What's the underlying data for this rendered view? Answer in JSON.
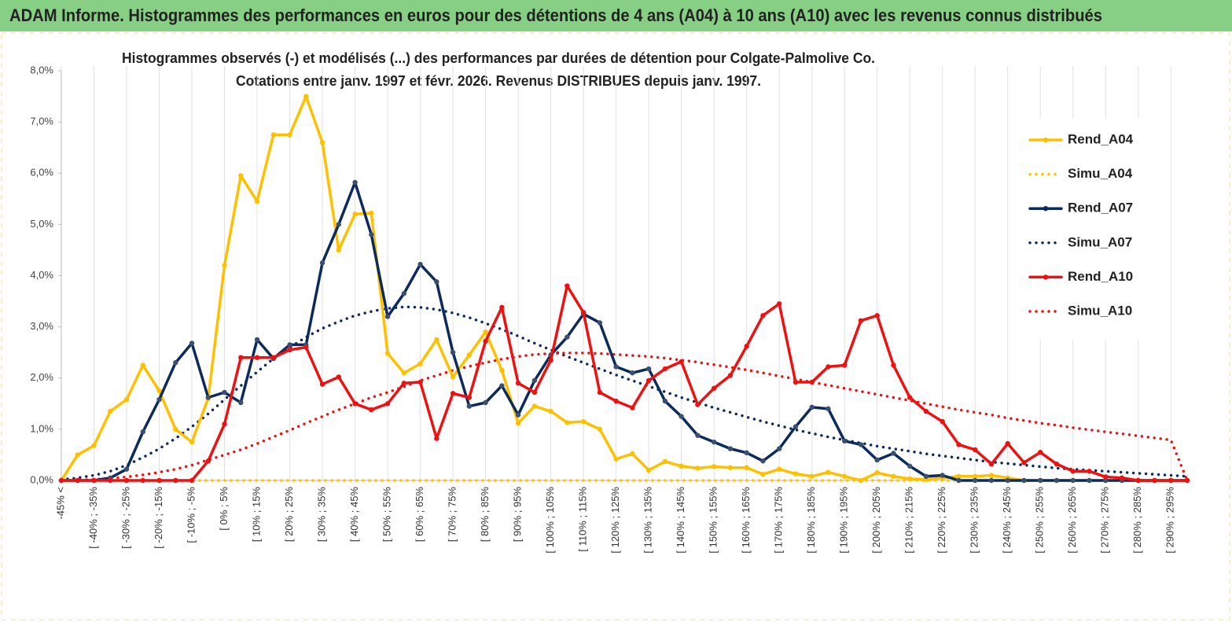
{
  "banner": "ADAM Informe. Histogrammes des performances en euros pour des détentions de 4 ans (A04) à 10 ans (A10) avec les revenus connus distribués",
  "chart_data": {
    "type": "line",
    "title": "Histogrammes observés (-) et modélisés (...) des performances par durées de détention pour Colgate-Palmolive Co.",
    "subtitle": "Cotations entre janv. 1997 et févr. 2026. Revenus DISTRIBUES depuis janv. 1997.",
    "categories": [
      "-45% <",
      null,
      "[ -40% ; -35%",
      null,
      "[ -30% ; -25%",
      null,
      "[ -20% ; -15%",
      null,
      "[ -10% ; -5%",
      null,
      "[ 0% ; 5%",
      null,
      "[ 10% ; 15%",
      null,
      "[ 20% ; 25%",
      null,
      "[ 30% ; 35%",
      null,
      "[ 40% ; 45%",
      null,
      "[ 50% ; 55%",
      null,
      "[ 60% ; 65%",
      null,
      "[ 70% ; 75%",
      null,
      "[ 80% ; 85%",
      null,
      "[ 90% ; 95%",
      null,
      "[ 100% ; 105%",
      null,
      "[ 110% ; 115%",
      null,
      "[ 120% ; 125%",
      null,
      "[ 130% ; 135%",
      null,
      "[ 140% ; 145%",
      null,
      "[ 150% ; 155%",
      null,
      "[ 160% ; 165%",
      null,
      "[ 170% ; 175%",
      null,
      "[ 180% ; 185%",
      null,
      "[ 190% ; 195%",
      null,
      "[ 200% ; 205%",
      null,
      "[ 210% ; 215%",
      null,
      "[ 220% ; 225%",
      null,
      "[ 230% ; 235%",
      null,
      "[ 240% ; 245%",
      null,
      "[ 250% ; 255%",
      null,
      "[ 260% ; 265%",
      null,
      "[ 270% ; 275%",
      null,
      "[ 280% ; 285%",
      null,
      "[ 290% ; 295%",
      null
    ],
    "ylim": [
      0,
      8
    ],
    "yticks": [
      {
        "value": 0,
        "label": "0,0%"
      },
      {
        "value": 1,
        "label": "1,0%"
      },
      {
        "value": 2,
        "label": "2,0%"
      },
      {
        "value": 3,
        "label": "3,0%"
      },
      {
        "value": 4,
        "label": "4,0%"
      },
      {
        "value": 5,
        "label": "5,0%"
      },
      {
        "value": 6,
        "label": "6,0%"
      },
      {
        "value": 7,
        "label": "7,0%"
      },
      {
        "value": 8,
        "label": "8,0%"
      }
    ],
    "grid": "x",
    "legend": "right",
    "series": [
      {
        "name": "Rend_A04",
        "color": "#ffc000",
        "style": "solid",
        "markers": true,
        "values": [
          0,
          0.5,
          0.68,
          1.35,
          1.58,
          2.25,
          1.75,
          1.0,
          0.75,
          1.6,
          4.2,
          5.95,
          5.45,
          6.75,
          6.75,
          7.5,
          6.6,
          4.5,
          5.2,
          5.22,
          2.48,
          2.1,
          2.28,
          2.75,
          2.02,
          2.45,
          2.9,
          2.15,
          1.12,
          1.45,
          1.35,
          1.13,
          1.15,
          1.0,
          0.42,
          0.52,
          0.2,
          0.37,
          0.28,
          0.24,
          0.27,
          0.25,
          0.25,
          0.12,
          0.22,
          0.13,
          0.08,
          0.16,
          0.08,
          0,
          0.15,
          0.08,
          0.03,
          0.02,
          0.05,
          0.08,
          0.08,
          0.1,
          0.05,
          0,
          0,
          0,
          0,
          0,
          0,
          0,
          0,
          0,
          0,
          0
        ]
      },
      {
        "name": "Simu_A04",
        "color": "#ffc000",
        "style": "dotted",
        "markers": false,
        "values": [
          0,
          0,
          0,
          0,
          0,
          0,
          0,
          0,
          0,
          0,
          0,
          0,
          0,
          0,
          0,
          0,
          0,
          0,
          0,
          0,
          0,
          0,
          0,
          0,
          0,
          0,
          0,
          0,
          0,
          0,
          0,
          0,
          0,
          0,
          0,
          0,
          0,
          0,
          0,
          0,
          0,
          0,
          0,
          0,
          0,
          0,
          0,
          0,
          0,
          0,
          0,
          0,
          0,
          0,
          0,
          0,
          0,
          0,
          0,
          0,
          0,
          0,
          0,
          0,
          0,
          0,
          0,
          0,
          0,
          0
        ]
      },
      {
        "name": "Rend_A07",
        "color": "#0d2a5c",
        "style": "solid",
        "markers": true,
        "values": [
          0,
          0,
          0,
          0.05,
          0.22,
          0.95,
          1.58,
          2.3,
          2.68,
          1.62,
          1.72,
          1.52,
          2.75,
          2.38,
          2.65,
          2.65,
          4.25,
          5.0,
          5.82,
          4.8,
          3.2,
          3.65,
          4.22,
          3.88,
          2.5,
          1.45,
          1.52,
          1.85,
          1.28,
          1.95,
          2.45,
          2.8,
          3.25,
          3.08,
          2.22,
          2.1,
          2.18,
          1.55,
          1.25,
          0.88,
          0.75,
          0.62,
          0.54,
          0.38,
          0.62,
          1.05,
          1.43,
          1.4,
          0.77,
          0.7,
          0.4,
          0.53,
          0.28,
          0.08,
          0.1,
          0,
          0,
          0,
          0,
          0,
          0,
          0,
          0,
          0,
          0,
          0,
          0,
          0,
          0,
          0
        ]
      },
      {
        "name": "Simu_A07",
        "color": "#0d2a5c",
        "style": "dotted",
        "markers": false,
        "values": [
          0.02,
          0.05,
          0.1,
          0.18,
          0.3,
          0.45,
          0.62,
          0.82,
          1.05,
          1.3,
          1.58,
          1.85,
          2.12,
          2.38,
          2.6,
          2.8,
          2.97,
          3.1,
          3.22,
          3.3,
          3.36,
          3.39,
          3.38,
          3.34,
          3.27,
          3.18,
          3.07,
          2.95,
          2.82,
          2.68,
          2.55,
          2.42,
          2.3,
          2.18,
          2.06,
          1.95,
          1.84,
          1.73,
          1.62,
          1.52,
          1.42,
          1.33,
          1.24,
          1.15,
          1.07,
          0.99,
          0.92,
          0.85,
          0.79,
          0.73,
          0.67,
          0.62,
          0.57,
          0.52,
          0.48,
          0.44,
          0.4,
          0.36,
          0.33,
          0.3,
          0.27,
          0.24,
          0.22,
          0.2,
          0.18,
          0.16,
          0.14,
          0.12,
          0.1,
          0.08
        ]
      },
      {
        "name": "Rend_A10",
        "color": "#ee1111",
        "style": "solid",
        "markers": true,
        "values": [
          0,
          0,
          0,
          0,
          0,
          0,
          0,
          0,
          0,
          0.38,
          1.1,
          2.4,
          2.4,
          2.4,
          2.55,
          2.6,
          1.88,
          2.02,
          1.5,
          1.38,
          1.5,
          1.9,
          1.92,
          0.82,
          1.7,
          1.62,
          2.72,
          3.38,
          1.9,
          1.72,
          2.35,
          3.8,
          3.28,
          1.72,
          1.55,
          1.42,
          1.95,
          2.18,
          2.32,
          1.48,
          1.8,
          2.05,
          2.62,
          3.22,
          3.45,
          1.92,
          1.92,
          2.22,
          2.25,
          3.12,
          3.22,
          2.25,
          1.62,
          1.35,
          1.15,
          0.7,
          0.6,
          0.32,
          0.72,
          0.35,
          0.55,
          0.32,
          0.18,
          0.18,
          0.07,
          0.05,
          0,
          0,
          0,
          0
        ]
      },
      {
        "name": "Simu_A10",
        "color": "#ee1111",
        "style": "dotted",
        "markers": false,
        "values": [
          0,
          0.01,
          0.02,
          0.04,
          0.07,
          0.11,
          0.16,
          0.22,
          0.3,
          0.4,
          0.5,
          0.6,
          0.72,
          0.85,
          0.98,
          1.12,
          1.25,
          1.38,
          1.5,
          1.62,
          1.72,
          1.83,
          1.95,
          2.05,
          2.15,
          2.23,
          2.3,
          2.37,
          2.42,
          2.46,
          2.48,
          2.49,
          2.49,
          2.48,
          2.46,
          2.44,
          2.42,
          2.39,
          2.35,
          2.31,
          2.26,
          2.21,
          2.16,
          2.1,
          2.04,
          1.98,
          1.92,
          1.86,
          1.8,
          1.74,
          1.68,
          1.62,
          1.56,
          1.5,
          1.44,
          1.38,
          1.33,
          1.28,
          1.22,
          1.17,
          1.12,
          1.08,
          1.03,
          0.99,
          0.95,
          0.91,
          0.87,
          0.83,
          0.79,
          0
        ]
      }
    ]
  }
}
